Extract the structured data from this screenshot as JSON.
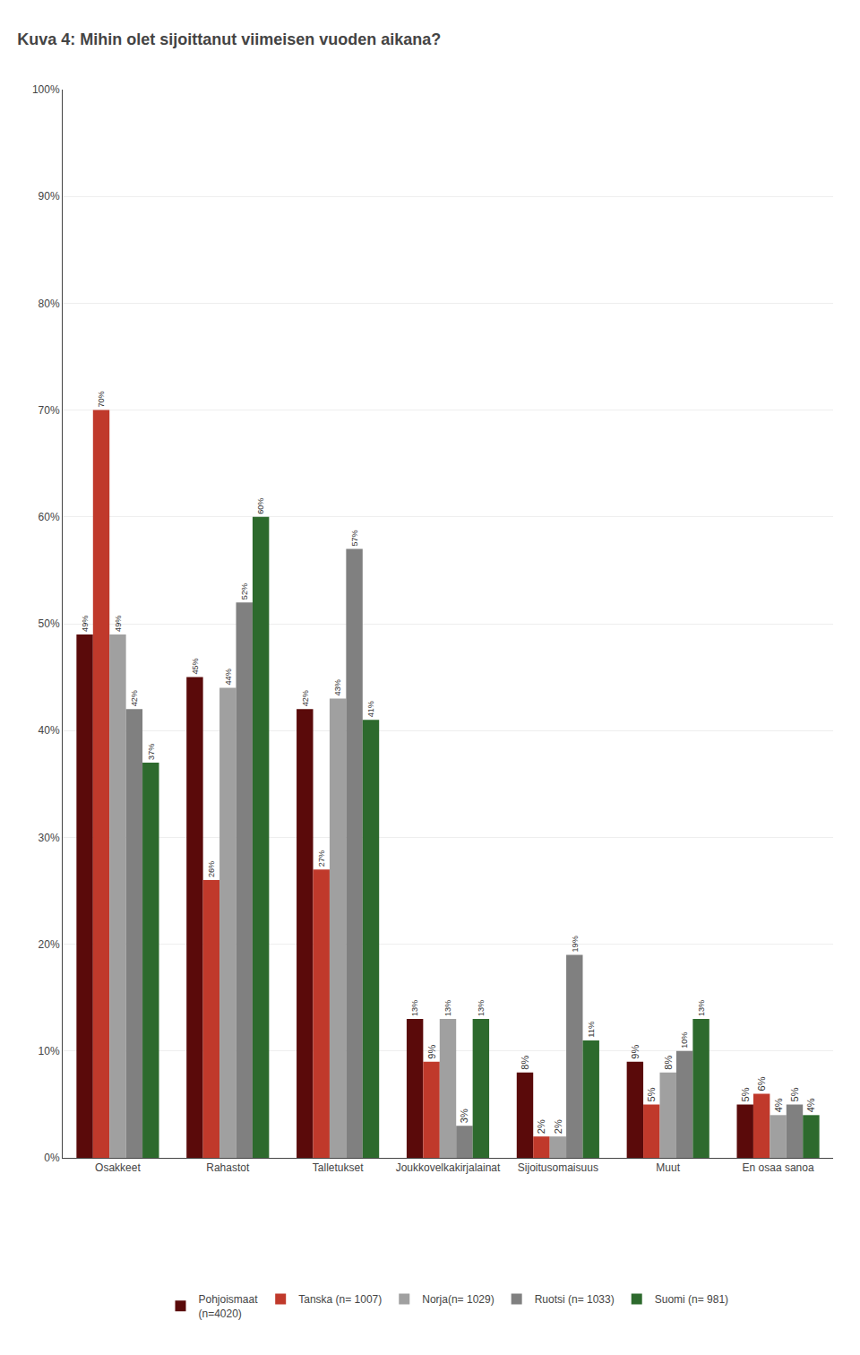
{
  "chart_data": {
    "type": "bar",
    "title": "Kuva 4: Mihin olet sijoittanut viimeisen vuoden aikana?",
    "categories": [
      "Osakkeet",
      "Rahastot",
      "Talletukset",
      "Joukkovelkakirjalainat",
      "Sijoitusomaisuus",
      "Muut",
      "En osaa sanoa"
    ],
    "series": [
      {
        "name": "Pohjoismaat\n(n=4020)",
        "color": "#5a0a0a",
        "values": [
          49,
          45,
          42,
          13,
          8,
          9,
          5
        ],
        "value_labels": [
          "49%",
          "45%",
          "42%",
          "13%",
          "8%",
          "9%",
          "5%"
        ]
      },
      {
        "name": "Tanska (n= 1007)",
        "color": "#c0392b",
        "values": [
          70,
          26,
          27,
          9,
          2,
          5,
          6
        ],
        "value_labels": [
          "70%",
          "26%",
          "27%",
          "9%",
          "2%",
          "5%",
          "6%"
        ]
      },
      {
        "name": "Norja(n= 1029)",
        "color": "#a0a0a0",
        "values": [
          49,
          44,
          43,
          13,
          2,
          8,
          4
        ],
        "value_labels": [
          "49%",
          "44%",
          "43%",
          "13%",
          "2%",
          "8%",
          "4%"
        ]
      },
      {
        "name": "Ruotsi (n= 1033)",
        "color": "#808080",
        "values": [
          42,
          52,
          57,
          3,
          19,
          10,
          5
        ],
        "value_labels": [
          "42%",
          "52%",
          "57%",
          "3%",
          "19%",
          "10%",
          "5%"
        ]
      },
      {
        "name": "Suomi (n= 981)",
        "color": "#2d6a2d",
        "values": [
          37,
          60,
          41,
          13,
          11,
          13,
          4
        ],
        "value_labels": [
          "37%",
          "60%",
          "41%",
          "13%",
          "11%",
          "13%",
          "4%"
        ]
      }
    ],
    "ylim": [
      0,
      100
    ],
    "yticks": [
      {
        "value": 0,
        "label": "0%"
      },
      {
        "value": 10,
        "label": "10%"
      },
      {
        "value": 20,
        "label": "20%"
      },
      {
        "value": 30,
        "label": "30%"
      },
      {
        "value": 40,
        "label": "40%"
      },
      {
        "value": 50,
        "label": "50%"
      },
      {
        "value": 60,
        "label": "60%"
      },
      {
        "value": 70,
        "label": "70%"
      },
      {
        "value": 80,
        "label": "80%"
      },
      {
        "value": 90,
        "label": "90%"
      },
      {
        "value": 100,
        "label": "100%"
      }
    ],
    "grid": "y",
    "legend": "bottom",
    "data_labels": true
  }
}
